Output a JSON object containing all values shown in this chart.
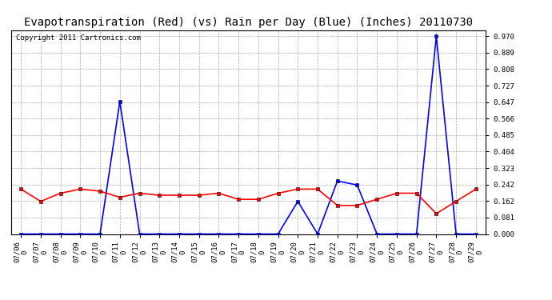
{
  "title": "Evapotranspiration (Red) (vs) Rain per Day (Blue) (Inches) 20110730",
  "copyright": "Copyright 2011 Cartronics.com",
  "date_labels": [
    "07/06",
    "07/07",
    "07/08",
    "07/09",
    "07/10",
    "07/11",
    "07/12",
    "07/13",
    "07/14",
    "07/15",
    "07/16",
    "07/17",
    "07/18",
    "07/19",
    "07/20",
    "07/21",
    "07/22",
    "07/23",
    "07/24",
    "07/25",
    "07/26",
    "07/27",
    "07/28",
    "07/29"
  ],
  "rain_blue": [
    0.0,
    0.0,
    0.0,
    0.0,
    0.0,
    0.65,
    0.0,
    0.0,
    0.0,
    0.0,
    0.0,
    0.0,
    0.0,
    0.0,
    0.16,
    0.0,
    0.26,
    0.24,
    0.0,
    0.0,
    0.0,
    0.97,
    0.0,
    0.0
  ],
  "et_red": [
    0.22,
    0.16,
    0.2,
    0.22,
    0.21,
    0.18,
    0.2,
    0.19,
    0.19,
    0.19,
    0.2,
    0.17,
    0.17,
    0.2,
    0.22,
    0.22,
    0.14,
    0.14,
    0.17,
    0.2,
    0.2,
    0.1,
    0.16,
    0.22
  ],
  "ylim": [
    0.0,
    1.0
  ],
  "yticks": [
    0.0,
    0.081,
    0.162,
    0.242,
    0.323,
    0.404,
    0.485,
    0.566,
    0.647,
    0.727,
    0.808,
    0.889,
    0.97
  ],
  "bg_color": "#ffffff",
  "grid_color": "#aaaaaa",
  "blue_color": "#0000ff",
  "red_color": "#ff0000",
  "title_fontsize": 10,
  "copyright_fontsize": 6.5,
  "tick_fontsize": 6.5
}
